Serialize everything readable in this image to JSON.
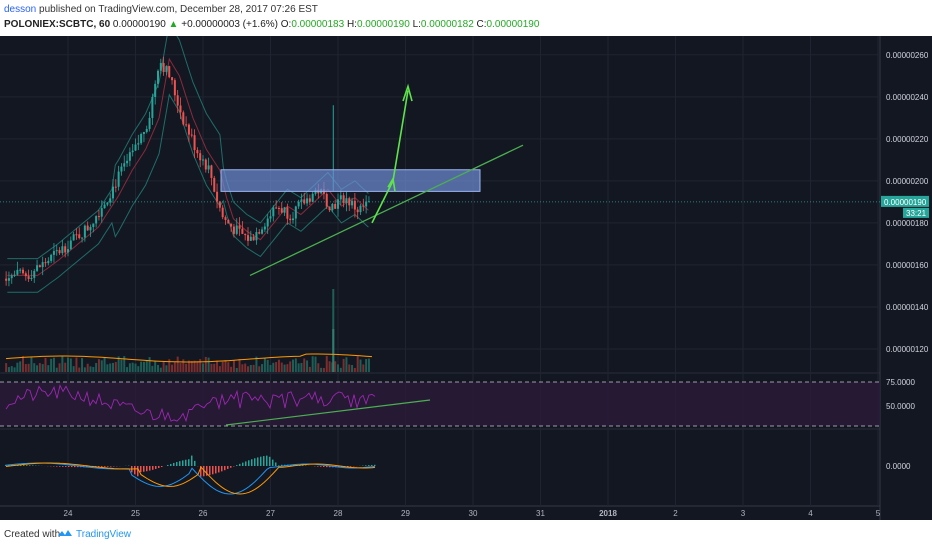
{
  "header": {
    "author": "desson",
    "published_text": "published on TradingView.com, December 28, 2017 07:26 EST",
    "symbol": "POLONIEX:SCBTC, 60",
    "last": "0.00000190",
    "change_arrow": "▲",
    "change": "+0.00000003 (+1.6%)",
    "o_label": "O:",
    "o": "0.00000183",
    "h_label": "H:",
    "h": "0.00000190",
    "l_label": "L:",
    "l": "0.00000182",
    "c_label": "C:",
    "c": "0.00000190"
  },
  "footer": {
    "created_with": "Created with",
    "brand": "TradingView"
  },
  "colors": {
    "background": "#131722",
    "up": "#26a69a",
    "down": "#ef5350",
    "bollinger": "#1b5e50",
    "basis": "#8b2a3a",
    "trendline": "#4caf50",
    "arrow": "#5ee44a",
    "resistance_box": "#6f8fd6",
    "rsi": "#9c27b0",
    "macd": "#2196f3",
    "signal": "#ff9800"
  },
  "chart_data": {
    "type": "candlestick",
    "symbol": "POLONIEX:SCBTC",
    "interval": "60",
    "x_ticks": [
      "24",
      "25",
      "26",
      "27",
      "28",
      "29",
      "30",
      "31",
      "2018",
      "2",
      "3",
      "4",
      "5"
    ],
    "price_axis": {
      "ticks": [
        "0.00000260",
        "0.00000240",
        "0.00000220",
        "0.00000200",
        "0.00000180",
        "0.00000160",
        "0.00000140",
        "0.00000120"
      ],
      "range": [
        1.1e-06,
        2.68e-06
      ],
      "last_price_label": "0.00000190",
      "countdown_label": "33:21"
    },
    "price_series_approx": {
      "x_day": [
        23.4,
        23.7,
        24.0,
        24.3,
        24.6,
        24.8,
        25.0,
        25.2,
        25.35,
        25.5,
        25.7,
        25.9,
        26.1,
        26.2,
        26.3,
        26.5,
        26.7,
        26.9,
        27.1,
        27.3,
        27.5,
        27.7,
        27.9,
        28.1,
        28.3,
        28.5
      ],
      "close": [
        1.55,
        1.62,
        1.7,
        1.78,
        1.93,
        2.05,
        2.15,
        2.3,
        2.58,
        2.5,
        2.3,
        2.15,
        2.05,
        1.92,
        1.82,
        1.76,
        1.72,
        1.8,
        1.88,
        1.84,
        1.9,
        1.96,
        1.88,
        1.92,
        1.86,
        1.9
      ],
      "unit": "1e-6 BTC"
    },
    "rsi": {
      "levels": [
        "75.0000",
        "50.0000"
      ],
      "upper": 75,
      "lower": 25
    },
    "macd": {
      "zero_label": "0.0000"
    },
    "annotations": {
      "resistance_zone": [
        1.95e-06,
        2.05e-06
      ],
      "rising_trendline": "from Dec 26 lows up to the right",
      "breakout_arrow": "upward toward 0.00000240"
    }
  }
}
